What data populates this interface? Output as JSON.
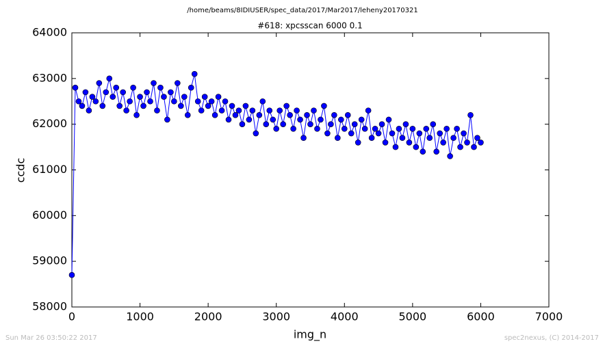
{
  "chart_data": {
    "type": "line",
    "suptitle": "/home/beams/8IDIUSER/spec_data/2017/Mar2017/leheny20170321",
    "title": "#618: xpcsscan 6000 0.1",
    "xlabel": "img_n",
    "ylabel": "ccdc",
    "footer_left": "Sun Mar 26 03:50:22 2017",
    "footer_right": "spec2nexus, (C) 2014-2017",
    "xlim": [
      0,
      7000
    ],
    "xticks": [
      0,
      1000,
      2000,
      3000,
      4000,
      5000,
      6000,
      7000
    ],
    "ylim": [
      58000,
      64000
    ],
    "yticks": [
      58000,
      59000,
      60000,
      61000,
      62000,
      63000,
      64000
    ],
    "grid": false,
    "x": [
      0,
      50,
      100,
      150,
      200,
      250,
      300,
      350,
      400,
      450,
      500,
      550,
      600,
      650,
      700,
      750,
      800,
      850,
      900,
      950,
      1000,
      1050,
      1100,
      1150,
      1200,
      1250,
      1300,
      1350,
      1400,
      1450,
      1500,
      1550,
      1600,
      1650,
      1700,
      1750,
      1800,
      1850,
      1900,
      1950,
      2000,
      2050,
      2100,
      2150,
      2200,
      2250,
      2300,
      2350,
      2400,
      2450,
      2500,
      2550,
      2600,
      2650,
      2700,
      2750,
      2800,
      2850,
      2900,
      2950,
      3000,
      3050,
      3100,
      3150,
      3200,
      3250,
      3300,
      3350,
      3400,
      3450,
      3500,
      3550,
      3600,
      3650,
      3700,
      3750,
      3800,
      3850,
      3900,
      3950,
      4000,
      4050,
      4100,
      4150,
      4200,
      4250,
      4300,
      4350,
      4400,
      4450,
      4500,
      4550,
      4600,
      4650,
      4700,
      4750,
      4800,
      4850,
      4900,
      4950,
      5000,
      5050,
      5100,
      5150,
      5200,
      5250,
      5300,
      5350,
      5400,
      5450,
      5500,
      5550,
      5600,
      5650,
      5700,
      5750,
      5800,
      5850,
      5900,
      5950,
      6000
    ],
    "series": [
      {
        "name": "ccdc",
        "color": "#0000ff",
        "values": [
          58700,
          62800,
          62500,
          62400,
          62700,
          62300,
          62600,
          62500,
          62900,
          62400,
          62700,
          63000,
          62600,
          62800,
          62400,
          62700,
          62300,
          62500,
          62800,
          62200,
          62600,
          62400,
          62700,
          62500,
          62900,
          62300,
          62800,
          62600,
          62100,
          62700,
          62500,
          62900,
          62400,
          62600,
          62200,
          62800,
          63100,
          62500,
          62300,
          62600,
          62400,
          62500,
          62200,
          62600,
          62300,
          62500,
          62100,
          62400,
          62200,
          62300,
          62000,
          62400,
          62100,
          62300,
          61800,
          62200,
          62500,
          62000,
          62300,
          62100,
          61900,
          62300,
          62000,
          62400,
          62200,
          61900,
          62300,
          62100,
          61700,
          62200,
          62000,
          62300,
          61900,
          62100,
          62400,
          61800,
          62000,
          62200,
          61700,
          62100,
          61900,
          62200,
          61800,
          62000,
          61600,
          62100,
          61900,
          62300,
          61700,
          61900,
          61800,
          62000,
          61600,
          62100,
          61800,
          61500,
          61900,
          61700,
          62000,
          61600,
          61900,
          61500,
          61800,
          61400,
          61900,
          61700,
          62000,
          61400,
          61800,
          61600,
          61900,
          61300,
          61700,
          61900,
          61500,
          61800,
          61600,
          62200,
          61500,
          61700,
          61600
        ]
      }
    ]
  }
}
